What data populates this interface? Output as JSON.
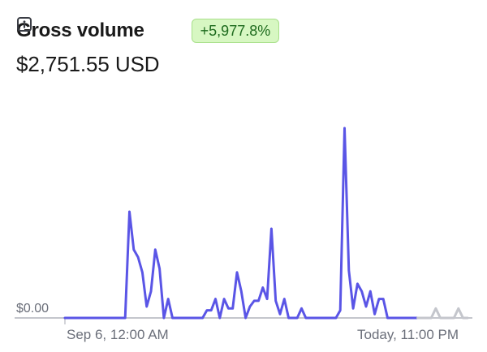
{
  "widget": {
    "title": "Gross volume",
    "change_badge": "+5,977.8%",
    "total": "$2,751.55 USD",
    "zero_label": "$0.00",
    "x_start_label": "Sep 6, 12:00 AM",
    "x_end_label": "Today, 11:00 PM",
    "icons": {
      "info": "info-icon"
    }
  },
  "colors": {
    "line": "#5a55e6",
    "projection": "#c4c6cc",
    "baseline": "#c4c6cc",
    "badge_bg": "#d7f7c2",
    "badge_text": "#1e6b1e"
  },
  "chart_data": {
    "type": "line",
    "xlabel": "",
    "ylabel": "",
    "x_tick_labels": [
      "Sep 6, 12:00 AM",
      "Today, 11:00 PM"
    ],
    "y_tick_labels": [
      "$0.00"
    ],
    "ylim": [
      0,
      100
    ],
    "grid": false,
    "series": [
      {
        "values": [
          0,
          0,
          0,
          0,
          0,
          0,
          0,
          0,
          0,
          0,
          0,
          0,
          0,
          0,
          0,
          56,
          36,
          32,
          24,
          6,
          14,
          36,
          26,
          0,
          10,
          0,
          0,
          0,
          0,
          0,
          0,
          0,
          0,
          4,
          4,
          10,
          0,
          10,
          5,
          5,
          24,
          14,
          0,
          6,
          9,
          9,
          16,
          10,
          47,
          9,
          2,
          10,
          0,
          0,
          0,
          5,
          0,
          0,
          0,
          0,
          0,
          0,
          0,
          0,
          4,
          100,
          25,
          5,
          18,
          14,
          6,
          14,
          2,
          10,
          10,
          0,
          0,
          0,
          0,
          0,
          0,
          0,
          0
        ]
      },
      {
        "values": [
          0,
          0,
          0,
          0,
          5,
          0,
          0,
          0,
          0,
          5,
          0,
          0
        ]
      }
    ]
  }
}
